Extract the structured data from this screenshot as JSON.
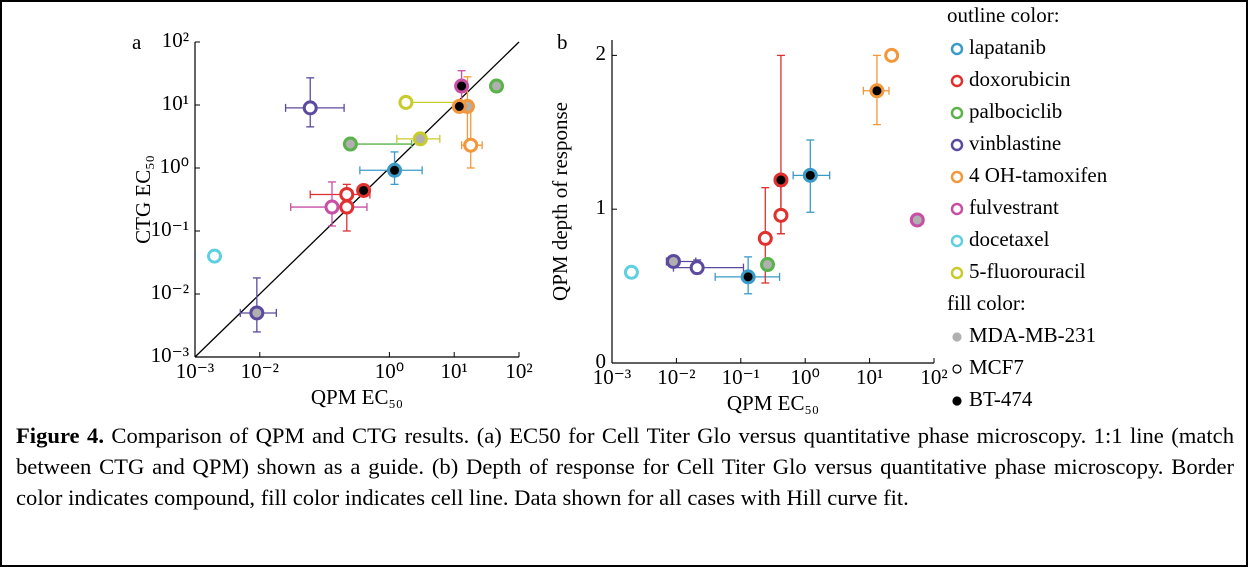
{
  "chart_data": [
    {
      "type": "scatter",
      "panel": "a",
      "xlabel": "QPM EC₅₀",
      "ylabel": "CTG EC₅₀",
      "xscale": "log",
      "yscale": "log",
      "identity_line": true,
      "xlim": [
        0.001,
        100
      ],
      "ylim": [
        0.001,
        100
      ],
      "xticks": [
        {
          "value": 0.001,
          "label": "10⁻³"
        },
        {
          "value": 0.01,
          "label": "10⁻²"
        },
        {
          "value": 1,
          "label": "10⁰"
        },
        {
          "value": 10,
          "label": "10¹"
        },
        {
          "value": 100,
          "label": "10²"
        }
      ],
      "yticks": [
        {
          "value": 0.001,
          "label": "10⁻³"
        },
        {
          "value": 0.01,
          "label": "10⁻²"
        },
        {
          "value": 0.1,
          "label": "10⁻¹"
        },
        {
          "value": 1,
          "label": "10⁰"
        },
        {
          "value": 10,
          "label": "10¹"
        },
        {
          "value": 100,
          "label": "10²"
        }
      ],
      "points": [
        {
          "outline": "#5fd0e0",
          "fill": "#ffffff",
          "x": 0.002,
          "y": 0.04
        },
        {
          "outline": "#5c4a9e",
          "fill": "#b0b0b0",
          "x": 0.009,
          "y": 0.005,
          "xerr": [
            0.005,
            0.018
          ],
          "yerr": [
            0.0025,
            0.018
          ]
        },
        {
          "outline": "#5c4a9e",
          "fill": "#ffffff",
          "x": 0.06,
          "y": 9,
          "xerr": [
            0.025,
            0.2
          ],
          "yerr": [
            4.5,
            27
          ]
        },
        {
          "outline": "#5ab24a",
          "fill": "#b0b0b0",
          "x": 0.25,
          "y": 2.4,
          "xerr": [
            0.22,
            2.2
          ]
        },
        {
          "outline": "#5ab24a",
          "fill": "#b0b0b0",
          "x": 45,
          "y": 20
        },
        {
          "outline": "#c8cc2a",
          "fill": "#ffffff",
          "x": 1.8,
          "y": 11,
          "xerr": [
            1.6,
            12
          ]
        },
        {
          "outline": "#c8cc2a",
          "fill": "#b0b0b0",
          "x": 3,
          "y": 2.9,
          "xerr": [
            1.3,
            6
          ]
        },
        {
          "outline": "#f2973a",
          "fill": "#b0b0b0",
          "x": 16,
          "y": 9.5,
          "yerr": [
            2.5,
            28
          ]
        },
        {
          "outline": "#f2973a",
          "fill": "#ffffff",
          "x": 18,
          "y": 2.3,
          "xerr": [
            13,
            27
          ],
          "yerr": [
            1,
            10
          ]
        },
        {
          "outline": "#f2973a",
          "fill": "#000000",
          "x": 12,
          "y": 9.5
        },
        {
          "outline": "#c74fa6",
          "fill": "#000000",
          "x": 13,
          "y": 20,
          "yerr": [
            9,
            35
          ]
        },
        {
          "outline": "#e0312f",
          "fill": "#ffffff",
          "x": 0.22,
          "y": 0.38,
          "xerr": [
            0.06,
            0.5
          ]
        },
        {
          "outline": "#e0312f",
          "fill": "#ffffff",
          "x": 0.22,
          "y": 0.24,
          "yerr": [
            0.1,
            0.55
          ]
        },
        {
          "outline": "#e0312f",
          "fill": "#000000",
          "x": 0.4,
          "y": 0.44
        },
        {
          "outline": "#c74fa6",
          "fill": "#ffffff",
          "x": 0.13,
          "y": 0.24,
          "xerr": [
            0.03,
            0.45
          ],
          "yerr": [
            0.12,
            0.6
          ]
        },
        {
          "outline": "#3b9bc8",
          "fill": "#000000",
          "x": 1.2,
          "y": 0.92,
          "xerr": [
            0.35,
            3.2
          ],
          "yerr": [
            0.55,
            1.8
          ]
        }
      ]
    },
    {
      "type": "scatter",
      "panel": "b",
      "xlabel": "QPM EC₅₀",
      "ylabel": "QPM depth of response",
      "xscale": "log",
      "yscale": "linear",
      "xlim": [
        0.001,
        100
      ],
      "ylim": [
        0,
        2.1
      ],
      "xticks": [
        {
          "value": 0.001,
          "label": "10⁻³"
        },
        {
          "value": 0.01,
          "label": "10⁻²"
        },
        {
          "value": 0.1,
          "label": "10⁻¹"
        },
        {
          "value": 1,
          "label": "10⁰"
        },
        {
          "value": 10,
          "label": "10¹"
        },
        {
          "value": 100,
          "label": "10²"
        }
      ],
      "yticks": [
        0,
        1,
        2
      ],
      "points": [
        {
          "outline": "#5fd0e0",
          "fill": "#ffffff",
          "x": 0.002,
          "y": 0.59
        },
        {
          "outline": "#5c4a9e",
          "fill": "#b0b0b0",
          "x": 0.009,
          "y": 0.66,
          "xerr": [
            0.007,
            0.02
          ]
        },
        {
          "outline": "#5c4a9e",
          "fill": "#ffffff",
          "x": 0.021,
          "y": 0.62,
          "xerr": [
            0.009,
            0.11
          ],
          "yerr": [
            0.58,
            0.67
          ]
        },
        {
          "outline": "#3b9bc8",
          "fill": "#000000",
          "x": 0.13,
          "y": 0.56,
          "xerr": [
            0.04,
            0.4
          ],
          "yerr": [
            0.45,
            0.69
          ]
        },
        {
          "outline": "#e0312f",
          "fill": "#ffffff",
          "x": 0.24,
          "y": 0.81,
          "yerr": [
            0.52,
            1.14
          ]
        },
        {
          "outline": "#5ab24a",
          "fill": "#b0b0b0",
          "x": 0.26,
          "y": 0.64
        },
        {
          "outline": "#e0312f",
          "fill": "#ffffff",
          "x": 0.42,
          "y": 0.96,
          "yerr": [
            0.84,
            1.15
          ]
        },
        {
          "outline": "#e0312f",
          "fill": "#000000",
          "x": 0.42,
          "y": 1.19,
          "yerr": [
            0.84,
            2.0
          ]
        },
        {
          "outline": "#3b9bc8",
          "fill": "#000000",
          "x": 1.2,
          "y": 1.22,
          "xerr": [
            0.65,
            2.4
          ],
          "yerr": [
            0.98,
            1.45
          ]
        },
        {
          "outline": "#f2973a",
          "fill": "#000000",
          "x": 13,
          "y": 1.77,
          "xerr": [
            8,
            20
          ],
          "yerr": [
            1.55,
            2.0
          ]
        },
        {
          "outline": "#f2973a",
          "fill": "#ffffff",
          "x": 22,
          "y": 2.0
        },
        {
          "outline": "#c74fa6",
          "fill": "#b0b0b0",
          "x": 55,
          "y": 0.93
        }
      ]
    }
  ],
  "legend": {
    "outline_title": "outline color:",
    "outline": [
      {
        "name": "lapatanib",
        "color": "#3b9bc8"
      },
      {
        "name": "doxorubicin",
        "color": "#e0312f"
      },
      {
        "name": "palbociclib",
        "color": "#5ab24a"
      },
      {
        "name": "vinblastine",
        "color": "#5c4a9e"
      },
      {
        "name": "4 OH-tamoxifen",
        "color": "#f2973a"
      },
      {
        "name": "fulvestrant",
        "color": "#c74fa6"
      },
      {
        "name": "docetaxel",
        "color": "#5fd0e0"
      },
      {
        "name": "5-fluorouracil",
        "color": "#c8cc2a"
      }
    ],
    "fill_title": "fill color:",
    "fill": [
      {
        "name": "MDA-MB-231",
        "color": "#b0b0b0"
      },
      {
        "name": "MCF7",
        "color": "#ffffff"
      },
      {
        "name": "BT-474",
        "color": "#000000"
      }
    ]
  },
  "caption": {
    "label": "Figure 4.",
    "text": "Comparison of QPM and CTG results. (a) EC50 for Cell Titer Glo versus quantitative phase microscopy. 1:1 line (match between CTG and QPM) shown as a guide. (b) Depth of response for Cell Titer Glo versus quantitative phase microscopy. Border color indicates compound, fill color indicates cell line. Data shown for all cases with Hill curve fit."
  }
}
